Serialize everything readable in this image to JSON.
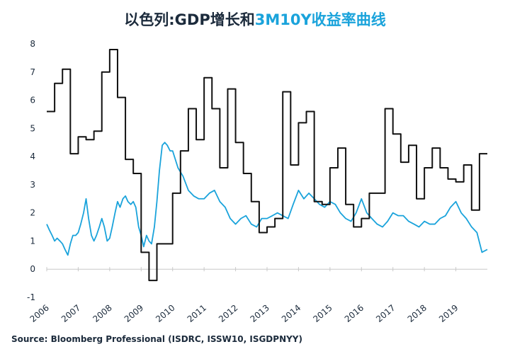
{
  "title": {
    "part1": "以色列:GDP增长和",
    "part2": "3M10Y收益率曲线"
  },
  "source": "Source: Bloomberg Professional  (ISDRC, ISSW10, ISGDPNYY)",
  "colors": {
    "gdp": "#111111",
    "yield_curve": "#1aa3db",
    "title_dark": "#1c2b3c",
    "title_accent": "#1aa3db"
  },
  "chart_data": {
    "type": "line",
    "title": "以色列:GDP增长和3M10Y收益率曲线",
    "xlim": [
      2006.0,
      2020.0
    ],
    "ylim": [
      -1,
      8
    ],
    "yticks": [
      -1,
      0,
      1,
      2,
      3,
      4,
      5,
      6,
      7,
      8
    ],
    "xticks": [
      "2006",
      "2007",
      "2008",
      "2009",
      "2010",
      "2011",
      "2012",
      "2013",
      "2014",
      "2015",
      "2016",
      "2017",
      "2018",
      "2019"
    ],
    "grid": false,
    "legend": "none",
    "series": [
      {
        "key": "gdp",
        "style": "step",
        "x": [
          2006.0,
          2006.25,
          2006.5,
          2006.75,
          2007.0,
          2007.25,
          2007.5,
          2007.75,
          2008.0,
          2008.25,
          2008.5,
          2008.75,
          2009.0,
          2009.25,
          2009.5,
          2009.75,
          2010.0,
          2010.25,
          2010.5,
          2010.75,
          2011.0,
          2011.25,
          2011.5,
          2011.75,
          2012.0,
          2012.25,
          2012.5,
          2012.75,
          2013.0,
          2013.25,
          2013.5,
          2013.75,
          2014.0,
          2014.25,
          2014.5,
          2014.75,
          2015.0,
          2015.25,
          2015.5,
          2015.75,
          2016.0,
          2016.25,
          2016.5,
          2016.75,
          2017.0,
          2017.25,
          2017.5,
          2017.75,
          2018.0,
          2018.25,
          2018.5,
          2018.75,
          2019.0,
          2019.25,
          2019.5,
          2019.75,
          2020.0
        ],
        "values": [
          5.6,
          6.6,
          7.1,
          4.1,
          4.7,
          4.6,
          4.9,
          7.0,
          7.8,
          6.1,
          3.9,
          3.4,
          0.6,
          -0.4,
          0.9,
          0.9,
          2.7,
          4.2,
          5.7,
          4.6,
          6.8,
          5.7,
          3.6,
          6.4,
          4.5,
          3.4,
          2.4,
          1.3,
          1.5,
          1.8,
          6.3,
          3.7,
          5.2,
          5.6,
          2.4,
          2.3,
          3.6,
          4.3,
          2.3,
          1.5,
          1.8,
          2.7,
          2.7,
          5.7,
          4.8,
          3.8,
          4.4,
          2.5,
          3.6,
          4.3,
          3.6,
          3.2,
          3.1,
          3.7,
          2.1,
          4.1,
          4.1
        ]
      },
      {
        "key": "yield_curve",
        "style": "line",
        "x": [
          2006.0,
          2006.08,
          2006.17,
          2006.25,
          2006.33,
          2006.42,
          2006.5,
          2006.58,
          2006.67,
          2006.75,
          2006.83,
          2006.92,
          2007.0,
          2007.08,
          2007.17,
          2007.25,
          2007.33,
          2007.42,
          2007.5,
          2007.58,
          2007.67,
          2007.75,
          2007.83,
          2007.92,
          2008.0,
          2008.08,
          2008.17,
          2008.25,
          2008.33,
          2008.42,
          2008.5,
          2008.58,
          2008.67,
          2008.75,
          2008.83,
          2008.92,
          2009.0,
          2009.08,
          2009.17,
          2009.25,
          2009.33,
          2009.42,
          2009.5,
          2009.58,
          2009.67,
          2009.75,
          2009.83,
          2009.92,
          2010.0,
          2010.17,
          2010.33,
          2010.5,
          2010.67,
          2010.83,
          2011.0,
          2011.17,
          2011.33,
          2011.5,
          2011.67,
          2011.83,
          2012.0,
          2012.17,
          2012.33,
          2012.5,
          2012.67,
          2012.83,
          2013.0,
          2013.17,
          2013.33,
          2013.5,
          2013.67,
          2013.83,
          2014.0,
          2014.17,
          2014.33,
          2014.5,
          2014.67,
          2014.83,
          2015.0,
          2015.17,
          2015.33,
          2015.5,
          2015.67,
          2015.83,
          2016.0,
          2016.17,
          2016.33,
          2016.5,
          2016.67,
          2016.83,
          2017.0,
          2017.17,
          2017.33,
          2017.5,
          2017.67,
          2017.83,
          2018.0,
          2018.17,
          2018.33,
          2018.5,
          2018.67,
          2018.83,
          2019.0,
          2019.17,
          2019.33,
          2019.5,
          2019.67,
          2019.83,
          2020.0
        ],
        "values": [
          1.6,
          1.4,
          1.2,
          1.0,
          1.1,
          1.0,
          0.9,
          0.7,
          0.5,
          0.9,
          1.2,
          1.2,
          1.3,
          1.6,
          2.0,
          2.5,
          1.8,
          1.2,
          1.0,
          1.2,
          1.5,
          1.8,
          1.5,
          1.0,
          1.1,
          1.5,
          2.0,
          2.4,
          2.2,
          2.5,
          2.6,
          2.4,
          2.3,
          2.4,
          2.2,
          1.5,
          1.2,
          0.8,
          1.2,
          1.0,
          0.9,
          1.5,
          2.4,
          3.5,
          4.4,
          4.5,
          4.4,
          4.2,
          4.2,
          3.6,
          3.3,
          2.8,
          2.6,
          2.5,
          2.5,
          2.7,
          2.8,
          2.4,
          2.2,
          1.8,
          1.6,
          1.8,
          1.9,
          1.6,
          1.5,
          1.8,
          1.8,
          1.9,
          2.0,
          1.9,
          1.8,
          2.3,
          2.8,
          2.5,
          2.7,
          2.5,
          2.3,
          2.2,
          2.4,
          2.3,
          2.0,
          1.8,
          1.7,
          2.0,
          2.5,
          2.0,
          1.8,
          1.6,
          1.5,
          1.7,
          2.0,
          1.9,
          1.9,
          1.7,
          1.6,
          1.5,
          1.7,
          1.6,
          1.6,
          1.8,
          1.9,
          2.2,
          2.4,
          2.0,
          1.8,
          1.5,
          1.3,
          0.6,
          0.7
        ]
      }
    ]
  }
}
